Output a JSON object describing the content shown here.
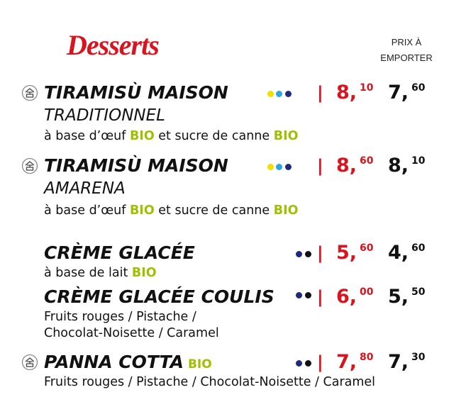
{
  "header": {
    "title": "Desserts",
    "takeaway_label": [
      "PRIX À",
      "EMPORTER"
    ]
  },
  "separator": "|",
  "items": [
    {
      "icon": true,
      "name": "TIRAMISÙ MAISON",
      "subname": "TRADITIONNEL",
      "dots": [
        "#f2df00",
        "#2ba6df",
        "#1f2b7a"
      ],
      "price": "8,",
      "price_cents": "10",
      "takeaway": "7,",
      "takeaway_cents": "60",
      "description": [
        [
          {
            "text": "à base d’œuf "
          },
          {
            "text": "BIO",
            "bio": true
          },
          {
            "text": " et sucre de canne "
          },
          {
            "text": "BIO",
            "bio": true
          }
        ]
      ]
    },
    {
      "icon": true,
      "name": "TIRAMISÙ MAISON",
      "subname": "AMARENA",
      "dots": [
        "#f2df00",
        "#2ba6df",
        "#1f2b7a"
      ],
      "price": "8,",
      "price_cents": "60",
      "takeaway": "8,",
      "takeaway_cents": "10",
      "description": [
        [
          {
            "text": "à base d’œuf "
          },
          {
            "text": "BIO",
            "bio": true
          },
          {
            "text": " et sucre de canne "
          },
          {
            "text": "BIO",
            "bio": true
          }
        ]
      ]
    },
    {
      "icon": false,
      "name": "CRÈME GLACÉE",
      "dots": [
        "#1f2b7a",
        "#111111"
      ],
      "price": "5,",
      "price_cents": "60",
      "takeaway": "4,",
      "takeaway_cents": "60",
      "description": [
        [
          {
            "text": "à base de lait "
          },
          {
            "text": "BIO",
            "bio": true
          }
        ]
      ]
    },
    {
      "icon": false,
      "name": "CRÈME GLACÉE COULIS",
      "dots": [
        "#1f2b7a",
        "#111111"
      ],
      "price": "6,",
      "price_cents": "00",
      "takeaway": "5,",
      "takeaway_cents": "50",
      "description": [
        [
          {
            "text": "Fruits rouges / Pistache /"
          }
        ],
        [
          {
            "text": "Chocolat-Noisette / Caramel"
          }
        ]
      ]
    },
    {
      "icon": true,
      "name": "PANNA COTTA",
      "name_bio": "BIO",
      "dots": [
        "#1f2b7a",
        "#111111"
      ],
      "price": "7,",
      "price_cents": "80",
      "takeaway": "7,",
      "takeaway_cents": "30",
      "description": [
        [
          {
            "text": "Fruits rouges / Pistache / Chocolat-Noisette / Caramel"
          }
        ]
      ]
    }
  ]
}
